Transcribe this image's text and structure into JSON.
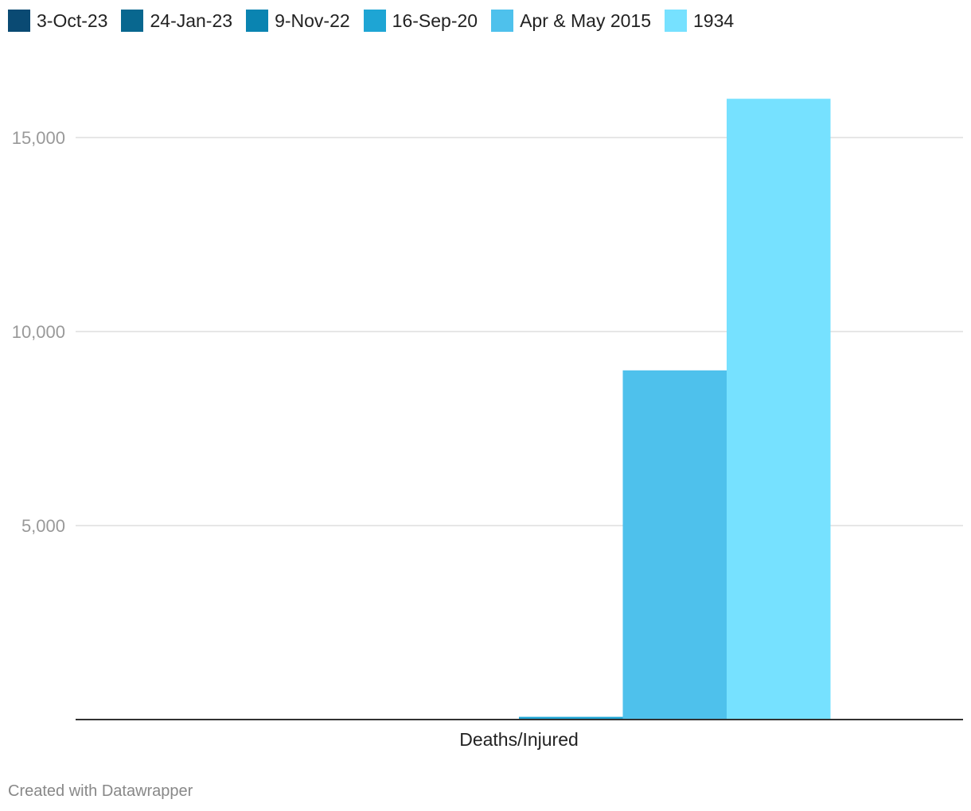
{
  "chart_data": {
    "type": "bar",
    "categories": [
      "Deaths/Injured"
    ],
    "series": [
      {
        "name": "3-Oct-23",
        "color": "#0a4a73",
        "values": [
          0
        ]
      },
      {
        "name": "24-Jan-23",
        "color": "#08678f",
        "values": [
          0
        ]
      },
      {
        "name": "9-Nov-22",
        "color": "#0a84b1",
        "values": [
          0
        ]
      },
      {
        "name": "16-Sep-20",
        "color": "#1ea5d4",
        "values": [
          70
        ]
      },
      {
        "name": "Apr & May 2015",
        "color": "#4ec1ec",
        "values": [
          9000
        ]
      },
      {
        "name": "1934",
        "color": "#76e1ff",
        "values": [
          16000
        ]
      }
    ],
    "y_ticks": [
      5000,
      10000,
      15000
    ],
    "y_tick_labels": [
      "5,000",
      "10,000",
      "15,000"
    ],
    "ylim": [
      0,
      16000
    ],
    "grid": true,
    "legend_position": "top-left"
  },
  "footer": {
    "credit": "Created with Datawrapper"
  },
  "colors": {
    "grid": "#dddddd",
    "axis": "#333333",
    "tick_label": "#999999"
  }
}
